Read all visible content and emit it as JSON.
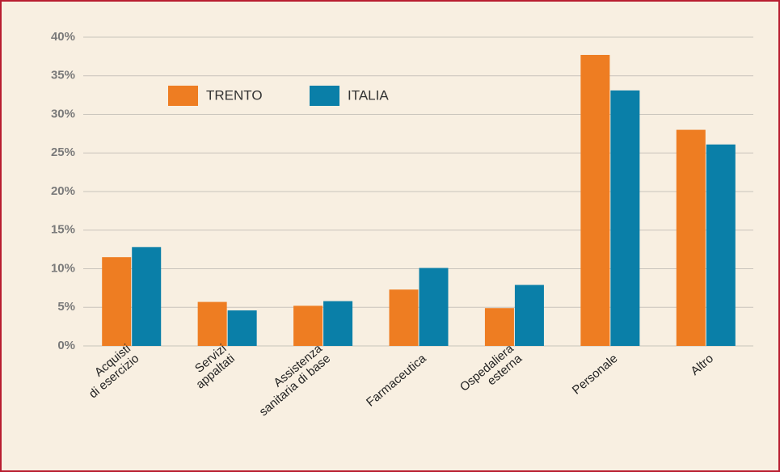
{
  "chart_data": {
    "type": "bar",
    "categories": [
      [
        "Acquisti",
        "di esercizio"
      ],
      [
        "Servizi",
        "appaltati"
      ],
      [
        "Assistenza",
        "sanitaria di base"
      ],
      [
        "Farmaceutica"
      ],
      [
        "Ospedaliera",
        "esterna"
      ],
      [
        "Personale"
      ],
      [
        "Altro"
      ]
    ],
    "series": [
      {
        "name": "TRENTO",
        "color": "#ee7d22",
        "values": [
          11.5,
          5.7,
          5.2,
          7.3,
          4.9,
          37.7,
          28.0
        ]
      },
      {
        "name": "ITALIA",
        "color": "#0a7fa8",
        "values": [
          12.8,
          4.6,
          5.8,
          10.1,
          7.9,
          33.1,
          26.1
        ]
      }
    ],
    "ylim": [
      0,
      40
    ],
    "yticks": [
      {
        "value": 0,
        "label": "0%"
      },
      {
        "value": 5,
        "label": "5%"
      },
      {
        "value": 10,
        "label": "10%"
      },
      {
        "value": 15,
        "label": "15%"
      },
      {
        "value": 20,
        "label": "20%"
      },
      {
        "value": 25,
        "label": "25%"
      },
      {
        "value": 30,
        "label": "30%"
      },
      {
        "value": 35,
        "label": "35%"
      },
      {
        "value": 40,
        "label": "40%"
      }
    ],
    "grid": true
  }
}
